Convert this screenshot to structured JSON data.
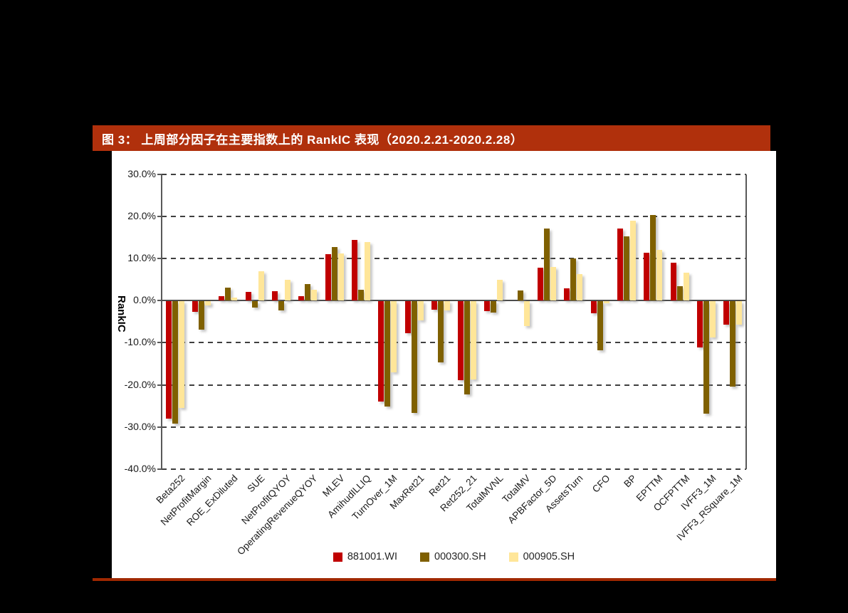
{
  "figure": {
    "title": "图 3： 上周部分因子在主要指数上的 RankIC 表现（2020.2.21-2020.2.28）"
  },
  "colors": {
    "page_background": "#000000",
    "panel_background": "#FFFFFF",
    "title_bar": "#B0300C",
    "bottom_rule": "#A02800",
    "series_881001_WI": "#C00000",
    "series_000300_SH": "#7F6000",
    "series_000905_SH": "#FFE699"
  },
  "chart_data": {
    "type": "bar",
    "title": "图 3： 上周部分因子在主要指数上的 RankIC 表现（2020.2.21-2020.2.28）",
    "xlabel": "",
    "ylabel": "RankIC",
    "ylim": [
      -40,
      30
    ],
    "grid": "horizontal-dashed",
    "legend_position": "bottom",
    "yticks": [
      30,
      20,
      10,
      0,
      -10,
      -20,
      -30,
      -40
    ],
    "ytick_labels": [
      "30.0%",
      "20.0%",
      "10.0%",
      "0.0%",
      "-10.0%",
      "-20.0%",
      "-30.0%",
      "-40.0%"
    ],
    "categories": [
      "Beta252",
      "NetProfitMargin",
      "ROE_ExDiluted",
      "SUE",
      "NetProfitQYOY",
      "OperatingRevenueQYOY",
      "MLEV",
      "AmihudILLIQ",
      "TurnOver_1M",
      "MaxRet21",
      "Ret21",
      "Ret252_21",
      "TotalMVNL",
      "TotalMV",
      "APBFactor_5D",
      "AssetsTurn",
      "CFO",
      "BP",
      "EPTTM",
      "OCFPTTM",
      "IVFF3_1M",
      "IVFF3_RSquare_1M"
    ],
    "series": [
      {
        "name": "881001.WI",
        "color": "#C00000",
        "values": [
          -27.9,
          -2.5,
          1.1,
          2.1,
          2.2,
          1.0,
          11.1,
          14.5,
          -23.8,
          -7.5,
          -2.0,
          -18.8,
          -2.4,
          0.0,
          7.8,
          3.0,
          -2.8,
          17.1,
          11.4,
          9.1,
          -11.0,
          -5.5
        ]
      },
      {
        "name": "000300.SH",
        "color": "#7F6000",
        "values": [
          -29.0,
          -6.8,
          3.1,
          -1.4,
          -2.2,
          3.9,
          12.7,
          2.6,
          -25.0,
          -26.5,
          -14.5,
          -22.1,
          -2.6,
          2.4,
          17.2,
          10.0,
          -11.6,
          15.2,
          20.4,
          3.4,
          -26.6,
          -20.2
        ]
      },
      {
        "name": "000905.SH",
        "color": "#FFE699",
        "values": [
          -25.4,
          -0.9,
          0.8,
          7.0,
          5.0,
          2.6,
          11.3,
          14.0,
          -16.8,
          -4.6,
          -2.1,
          -18.5,
          4.9,
          -5.9,
          8.0,
          6.3,
          -0.4,
          19.0,
          12.1,
          6.7,
          -8.6,
          -5.6
        ]
      }
    ]
  }
}
